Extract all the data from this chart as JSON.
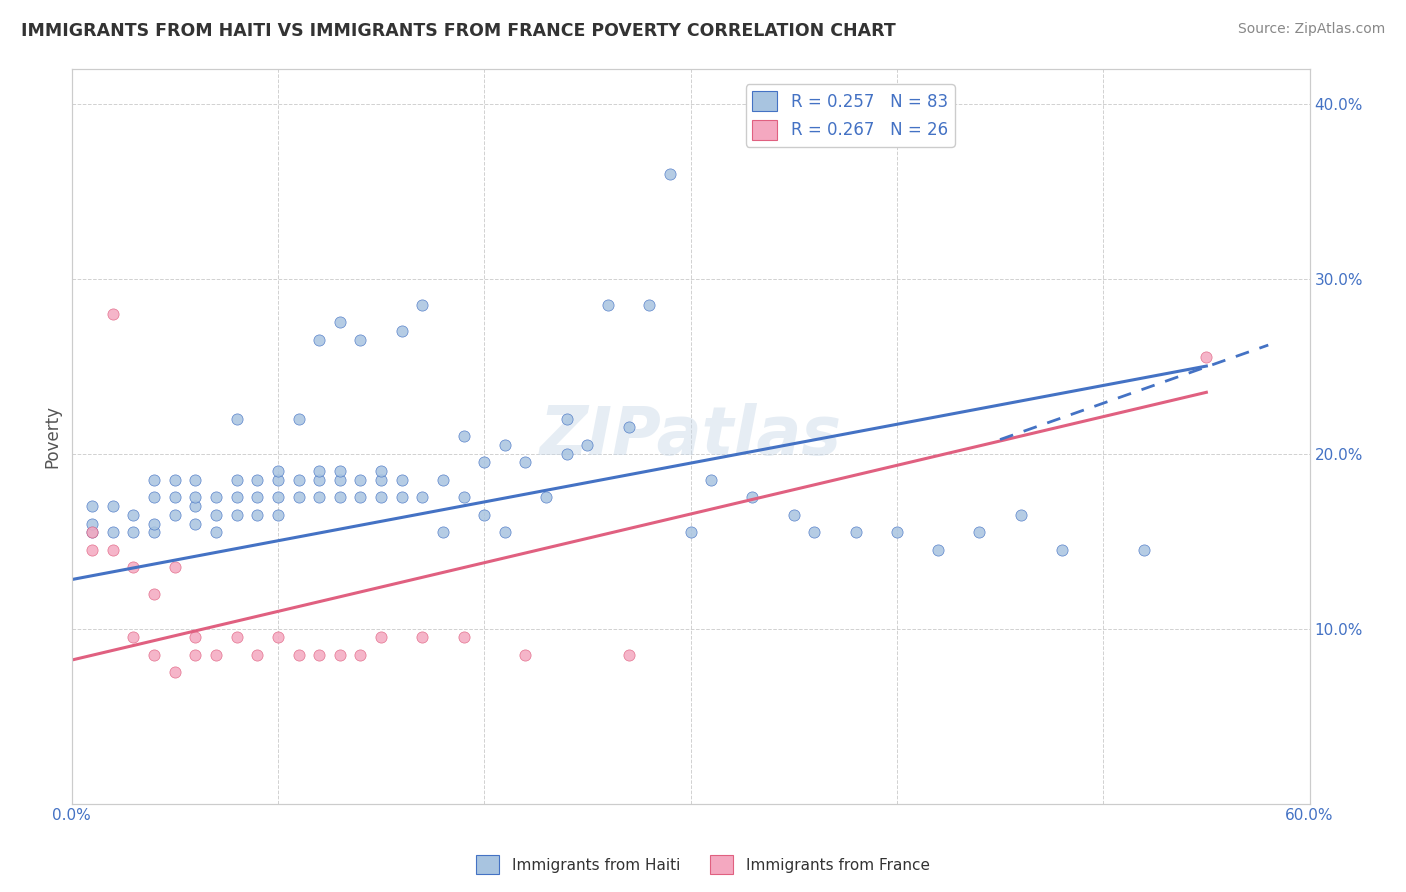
{
  "title": "IMMIGRANTS FROM HAITI VS IMMIGRANTS FROM FRANCE POVERTY CORRELATION CHART",
  "source": "Source: ZipAtlas.com",
  "xlabel": "",
  "ylabel": "Poverty",
  "xlim": [
    0.0,
    0.6
  ],
  "ylim": [
    0.0,
    0.42
  ],
  "x_ticks": [
    0.0,
    0.1,
    0.2,
    0.3,
    0.4,
    0.5,
    0.6
  ],
  "x_tick_labels": [
    "0.0%",
    "",
    "",
    "",
    "",
    "",
    "60.0%"
  ],
  "y_ticks": [
    0.0,
    0.1,
    0.2,
    0.3,
    0.4
  ],
  "y_tick_labels": [
    "",
    "10.0%",
    "20.0%",
    "30.0%",
    "40.0%"
  ],
  "R_haiti": 0.257,
  "N_haiti": 83,
  "R_france": 0.267,
  "N_france": 26,
  "color_haiti": "#a8c4e0",
  "color_france": "#f4a8c0",
  "color_trendline_haiti": "#4472c4",
  "color_trendline_france": "#e06080",
  "watermark": "ZIPatlas",
  "haiti_x": [
    0.01,
    0.01,
    0.01,
    0.02,
    0.02,
    0.03,
    0.03,
    0.04,
    0.04,
    0.04,
    0.04,
    0.05,
    0.05,
    0.05,
    0.06,
    0.06,
    0.06,
    0.06,
    0.07,
    0.07,
    0.07,
    0.08,
    0.08,
    0.08,
    0.08,
    0.09,
    0.09,
    0.09,
    0.1,
    0.1,
    0.1,
    0.1,
    0.11,
    0.11,
    0.11,
    0.12,
    0.12,
    0.12,
    0.12,
    0.13,
    0.13,
    0.13,
    0.13,
    0.14,
    0.14,
    0.14,
    0.15,
    0.15,
    0.15,
    0.16,
    0.16,
    0.16,
    0.17,
    0.17,
    0.18,
    0.18,
    0.19,
    0.19,
    0.2,
    0.2,
    0.21,
    0.21,
    0.22,
    0.23,
    0.24,
    0.24,
    0.25,
    0.26,
    0.27,
    0.28,
    0.29,
    0.3,
    0.31,
    0.33,
    0.35,
    0.36,
    0.38,
    0.4,
    0.42,
    0.44,
    0.46,
    0.48,
    0.52
  ],
  "haiti_y": [
    0.155,
    0.16,
    0.17,
    0.155,
    0.17,
    0.155,
    0.165,
    0.155,
    0.16,
    0.175,
    0.185,
    0.165,
    0.175,
    0.185,
    0.16,
    0.17,
    0.175,
    0.185,
    0.155,
    0.165,
    0.175,
    0.165,
    0.175,
    0.185,
    0.22,
    0.165,
    0.175,
    0.185,
    0.165,
    0.175,
    0.185,
    0.19,
    0.175,
    0.185,
    0.22,
    0.175,
    0.185,
    0.19,
    0.265,
    0.175,
    0.185,
    0.19,
    0.275,
    0.175,
    0.185,
    0.265,
    0.175,
    0.185,
    0.19,
    0.175,
    0.185,
    0.27,
    0.175,
    0.285,
    0.155,
    0.185,
    0.175,
    0.21,
    0.165,
    0.195,
    0.155,
    0.205,
    0.195,
    0.175,
    0.2,
    0.22,
    0.205,
    0.285,
    0.215,
    0.285,
    0.36,
    0.155,
    0.185,
    0.175,
    0.165,
    0.155,
    0.155,
    0.155,
    0.145,
    0.155,
    0.165,
    0.145,
    0.145
  ],
  "france_x": [
    0.01,
    0.01,
    0.02,
    0.02,
    0.03,
    0.03,
    0.04,
    0.04,
    0.05,
    0.05,
    0.06,
    0.06,
    0.07,
    0.08,
    0.09,
    0.1,
    0.11,
    0.12,
    0.13,
    0.14,
    0.15,
    0.17,
    0.19,
    0.22,
    0.27,
    0.55
  ],
  "france_y": [
    0.145,
    0.155,
    0.28,
    0.145,
    0.135,
    0.095,
    0.12,
    0.085,
    0.135,
    0.075,
    0.085,
    0.095,
    0.085,
    0.095,
    0.085,
    0.095,
    0.085,
    0.085,
    0.085,
    0.085,
    0.095,
    0.095,
    0.095,
    0.085,
    0.085,
    0.255
  ]
}
